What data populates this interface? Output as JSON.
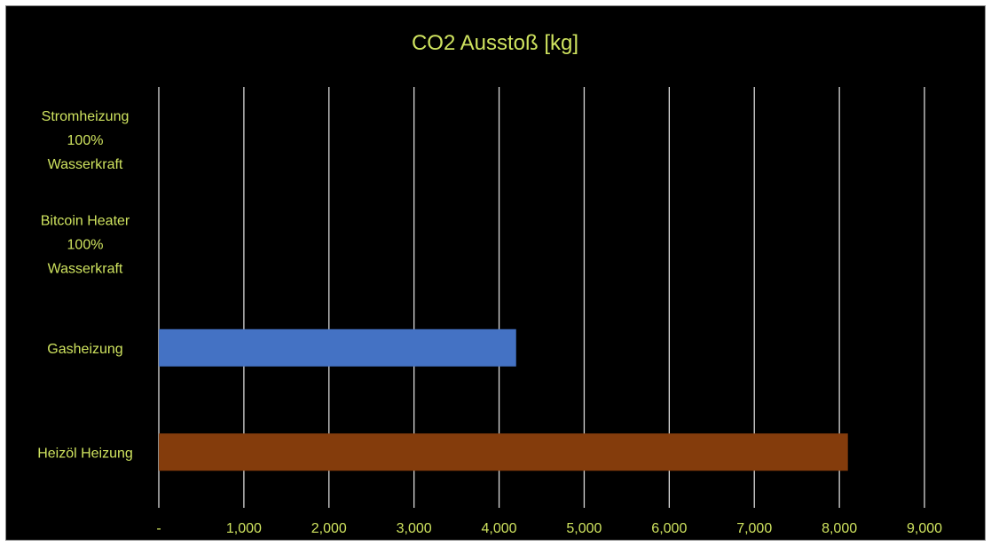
{
  "colors": {
    "background": "#000000",
    "text": "#cfe35f",
    "gridline": "#d9d9d9",
    "gas_bar": "#4472c4",
    "oil_bar": "#843c0c"
  },
  "chart_data": {
    "type": "bar",
    "orientation": "horizontal",
    "title": "CO2 Ausstoß [kg]",
    "xlabel": "",
    "ylabel": "",
    "xlim": [
      0,
      9000
    ],
    "grid": true,
    "legend": "none",
    "ticks": [
      {
        "value": 0,
        "label": "-"
      },
      {
        "value": 1000,
        "label": "1,000"
      },
      {
        "value": 2000,
        "label": "2,000"
      },
      {
        "value": 3000,
        "label": "3,000"
      },
      {
        "value": 4000,
        "label": "4,000"
      },
      {
        "value": 5000,
        "label": "5,000"
      },
      {
        "value": 6000,
        "label": "6,000"
      },
      {
        "value": 7000,
        "label": "7,000"
      },
      {
        "value": 8000,
        "label": "8,000"
      },
      {
        "value": 9000,
        "label": "9,000"
      }
    ],
    "categories": [
      {
        "lines": [
          "Stromheizung",
          "100%",
          "Wasserkraft"
        ],
        "value": 0,
        "color": ""
      },
      {
        "lines": [
          "Bitcoin Heater",
          "100%",
          "Wasserkraft"
        ],
        "value": 0,
        "color": ""
      },
      {
        "lines": [
          "Gasheizung"
        ],
        "value": 4200,
        "color": "#4472c4"
      },
      {
        "lines": [
          "Heizöl Heizung"
        ],
        "value": 8100,
        "color": "#843c0c"
      }
    ]
  }
}
